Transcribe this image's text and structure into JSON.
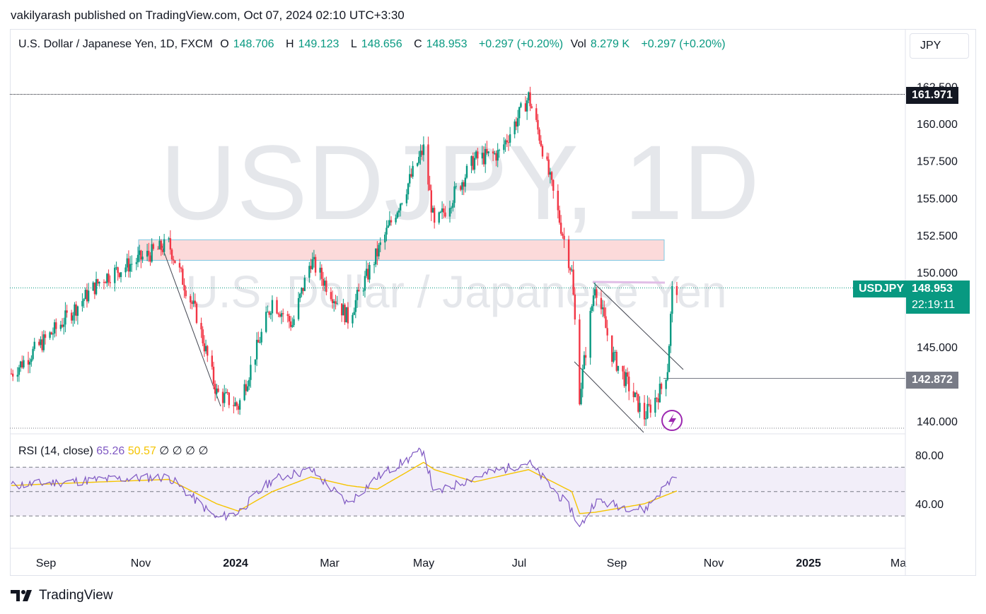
{
  "publisher": "vakilyarash published on TradingView.com, Oct 07, 2024 02:10 UTC+3:30",
  "currency_button": "JPY",
  "legend": {
    "symbol": "U.S. Dollar / Japanese Yen, 1D, FXCM",
    "o_label": "O",
    "o_value": "148.706",
    "h_label": "H",
    "h_value": "149.123",
    "l_label": "L",
    "l_value": "148.656",
    "c_label": "C",
    "c_value": "148.953",
    "change": "+0.297 (+0.20%)",
    "vol_label": "Vol",
    "vol_value": "8.279 K",
    "vol_change": "+0.297 (+0.20%)"
  },
  "watermark": {
    "line1": "USDJPY, 1D",
    "line2": "U.S. Dollar / Japanese Yen"
  },
  "price_tags": {
    "high": "161.971",
    "symbol": "USDJPY",
    "last": "148.953",
    "countdown": "22:19:11",
    "low_line": "142.872"
  },
  "rsi_legend": {
    "label": "RSI (14, close)",
    "rsi": "65.26",
    "ma": "50.57",
    "empties": [
      "∅",
      "∅",
      "∅",
      "∅"
    ]
  },
  "brand": "TradingView",
  "colors": {
    "up": "#089981",
    "down": "#f23645",
    "rsi": "#7e57c2",
    "rsi_ma": "#f5c400",
    "zone": "#fcdada"
  },
  "chart_data": {
    "type": "candlestick",
    "price_axis_ticks": [
      "162.500",
      "160.000",
      "157.500",
      "155.000",
      "152.500",
      "150.000",
      "147.500",
      "145.000",
      "142.500",
      "140.000"
    ],
    "ylim": [
      139.5,
      162.6
    ],
    "time_axis_ticks": [
      "Sep",
      "Nov",
      "2024",
      "Mar",
      "May",
      "Jul",
      "Sep",
      "Nov",
      "2025",
      "Ma"
    ],
    "series": [
      {
        "name": "USDJPY",
        "keypoints": [
          {
            "date": "2023-08-03",
            "close": 143.2
          },
          {
            "date": "2023-09-01",
            "close": 146.2
          },
          {
            "date": "2023-10-01",
            "close": 149.6
          },
          {
            "date": "2023-11-13",
            "close": 151.9
          },
          {
            "date": "2023-12-01",
            "close": 147.1
          },
          {
            "date": "2023-12-14",
            "close": 141.9
          },
          {
            "date": "2023-12-28",
            "close": 141.0
          },
          {
            "date": "2024-01-19",
            "close": 148.1
          },
          {
            "date": "2024-02-01",
            "close": 146.5
          },
          {
            "date": "2024-02-13",
            "close": 150.8
          },
          {
            "date": "2024-03-08",
            "close": 146.9
          },
          {
            "date": "2024-03-27",
            "close": 151.3
          },
          {
            "date": "2024-04-26",
            "close": 158.3
          },
          {
            "date": "2024-05-03",
            "close": 153.0
          },
          {
            "date": "2024-05-29",
            "close": 157.6
          },
          {
            "date": "2024-06-14",
            "close": 158.0
          },
          {
            "date": "2024-07-03",
            "close": 161.8
          },
          {
            "date": "2024-07-11",
            "close": 158.8
          },
          {
            "date": "2024-07-31",
            "close": 150.0
          },
          {
            "date": "2024-08-05",
            "close": 141.7
          },
          {
            "date": "2024-08-15",
            "close": 149.3
          },
          {
            "date": "2024-08-26",
            "close": 144.5
          },
          {
            "date": "2024-09-16",
            "close": 140.3
          },
          {
            "date": "2024-09-27",
            "close": 142.2
          },
          {
            "date": "2024-10-01",
            "close": 143.6
          },
          {
            "date": "2024-10-04",
            "close": 148.7
          },
          {
            "date": "2024-10-07",
            "close": 148.95
          }
        ]
      }
    ],
    "levels": [
      {
        "name": "high",
        "value": 161.971
      },
      {
        "name": "low_line",
        "value": 142.872
      }
    ],
    "zone": {
      "from": "2023-11-01",
      "to": "2024-08-15",
      "low": 151.0,
      "high": 152.0
    },
    "rsi": {
      "type": "line",
      "ylim": [
        20,
        90
      ],
      "ticks": [
        "80.00",
        "40.00"
      ],
      "band": [
        30,
        70
      ],
      "keypoints": [
        {
          "date": "2023-08-03",
          "rsi": 55,
          "ma": 55
        },
        {
          "date": "2023-10-01",
          "rsi": 60,
          "ma": 58
        },
        {
          "date": "2023-11-13",
          "rsi": 62,
          "ma": 60
        },
        {
          "date": "2023-12-14",
          "rsi": 28,
          "ma": 40
        },
        {
          "date": "2023-12-28",
          "rsi": 33,
          "ma": 34
        },
        {
          "date": "2024-01-19",
          "rsi": 60,
          "ma": 50
        },
        {
          "date": "2024-02-13",
          "rsi": 68,
          "ma": 62
        },
        {
          "date": "2024-03-08",
          "rsi": 40,
          "ma": 55
        },
        {
          "date": "2024-03-27",
          "rsi": 62,
          "ma": 52
        },
        {
          "date": "2024-04-26",
          "rsi": 84,
          "ma": 74
        },
        {
          "date": "2024-05-03",
          "rsi": 48,
          "ma": 68
        },
        {
          "date": "2024-05-29",
          "rsi": 62,
          "ma": 58
        },
        {
          "date": "2024-07-03",
          "rsi": 74,
          "ma": 68
        },
        {
          "date": "2024-07-31",
          "rsi": 35,
          "ma": 50
        },
        {
          "date": "2024-08-05",
          "rsi": 20,
          "ma": 32
        },
        {
          "date": "2024-08-15",
          "rsi": 42,
          "ma": 33
        },
        {
          "date": "2024-09-16",
          "rsi": 35,
          "ma": 40
        },
        {
          "date": "2024-10-07",
          "rsi": 65.26,
          "ma": 50.57
        }
      ]
    }
  }
}
